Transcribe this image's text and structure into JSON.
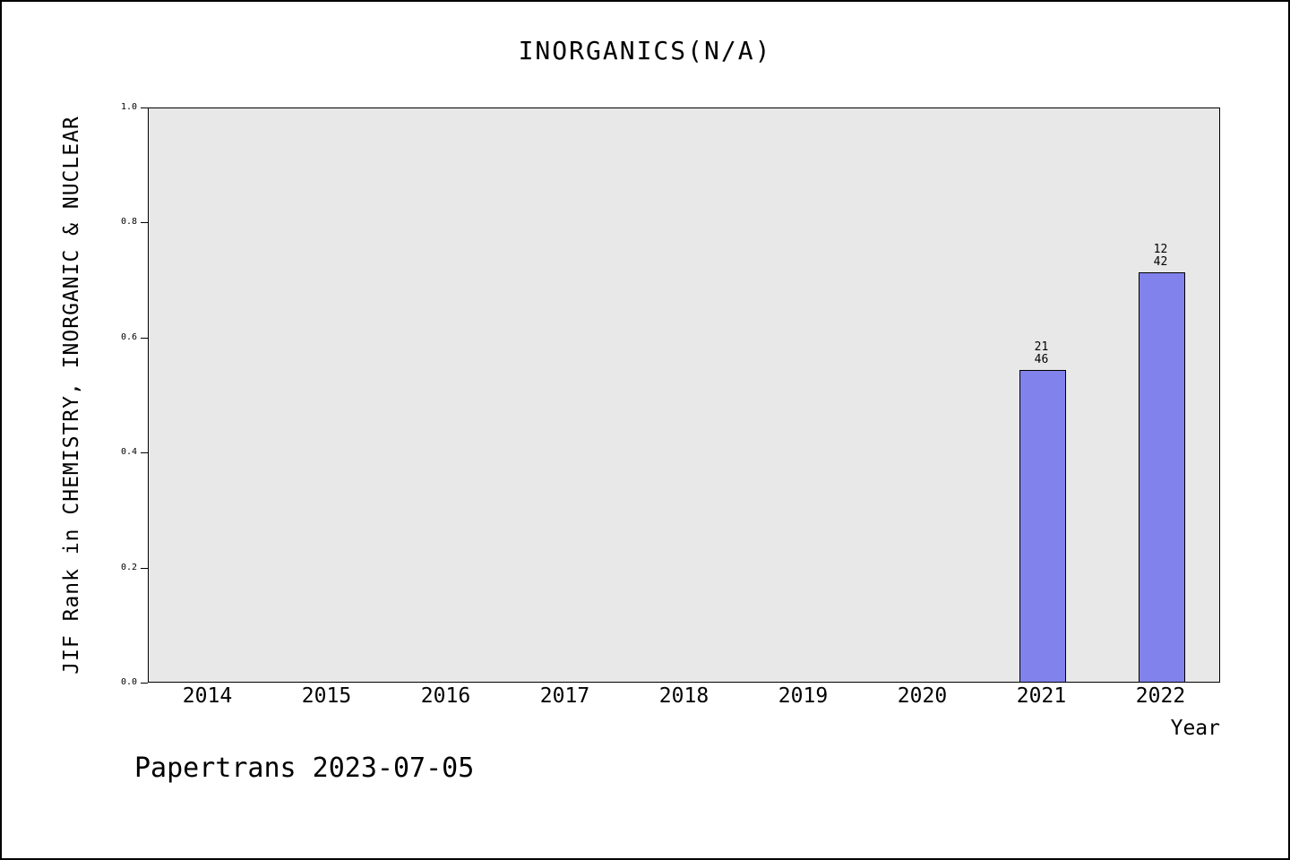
{
  "title": "INORGANICS(N/A)",
  "footer": "Papertrans 2023-07-05",
  "chart_data": {
    "type": "bar",
    "title": "INORGANICS(N/A)",
    "xlabel": "Year",
    "ylabel": "JIF Rank in CHEMISTRY, INORGANIC & NUCLEAR",
    "categories": [
      "2014",
      "2015",
      "2016",
      "2017",
      "2018",
      "2019",
      "2020",
      "2021",
      "2022"
    ],
    "values": [
      null,
      null,
      null,
      null,
      null,
      null,
      null,
      0.543,
      0.714
    ],
    "bar_labels": [
      null,
      null,
      null,
      null,
      null,
      null,
      null,
      [
        "21",
        "46"
      ],
      [
        "12",
        "42"
      ]
    ],
    "ylim": [
      0.0,
      1.0
    ],
    "yticks": [
      "0.0",
      "0.2",
      "0.4",
      "0.6",
      "0.8",
      "1.0"
    ],
    "grid": false,
    "legend": "none",
    "bar_color": "#8282ec",
    "plot_bg": "#e8e8e8",
    "axis_color": "#000000"
  }
}
